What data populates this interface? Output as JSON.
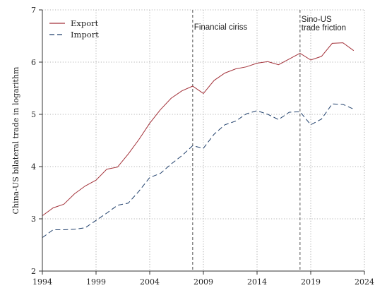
{
  "chart_data": {
    "type": "line",
    "title": "",
    "xlabel": "",
    "ylabel": "China-US bilateral trade in logarithm",
    "xlim": [
      1994,
      2024
    ],
    "ylim": [
      2,
      7
    ],
    "xticks": [
      1994,
      1999,
      2004,
      2009,
      2014,
      2019,
      2024
    ],
    "yticks": [
      2,
      3,
      4,
      5,
      6,
      7
    ],
    "grid": true,
    "legend_position": "top-left",
    "x": [
      1994,
      1995,
      1996,
      1997,
      1998,
      1999,
      2000,
      2001,
      2002,
      2003,
      2004,
      2005,
      2006,
      2007,
      2008,
      2009,
      2010,
      2011,
      2012,
      2013,
      2014,
      2015,
      2016,
      2017,
      2018,
      2019,
      2020,
      2021,
      2022,
      2023
    ],
    "series": [
      {
        "name": "Export",
        "color": "#a3323a",
        "style": "solid",
        "values": [
          3.06,
          3.21,
          3.28,
          3.48,
          3.63,
          3.74,
          3.95,
          3.99,
          4.24,
          4.52,
          4.83,
          5.09,
          5.31,
          5.45,
          5.54,
          5.4,
          5.65,
          5.79,
          5.87,
          5.91,
          5.98,
          6.01,
          5.95,
          6.06,
          6.17,
          6.04,
          6.11,
          6.36,
          6.37,
          6.22
        ]
      },
      {
        "name": "Import",
        "color": "#1f3f6b",
        "style": "dashed",
        "values": [
          2.64,
          2.79,
          2.79,
          2.8,
          2.83,
          2.97,
          3.11,
          3.26,
          3.3,
          3.53,
          3.79,
          3.87,
          4.05,
          4.21,
          4.4,
          4.35,
          4.62,
          4.8,
          4.87,
          5.01,
          5.07,
          5.0,
          4.9,
          5.04,
          5.05,
          4.8,
          4.91,
          5.2,
          5.19,
          5.1
        ]
      }
    ],
    "annotations": [
      {
        "x": 2008,
        "lines": [
          "Financial ciriss"
        ]
      },
      {
        "x": 2018,
        "lines": [
          "Sino-US",
          "trade friction"
        ]
      }
    ]
  }
}
